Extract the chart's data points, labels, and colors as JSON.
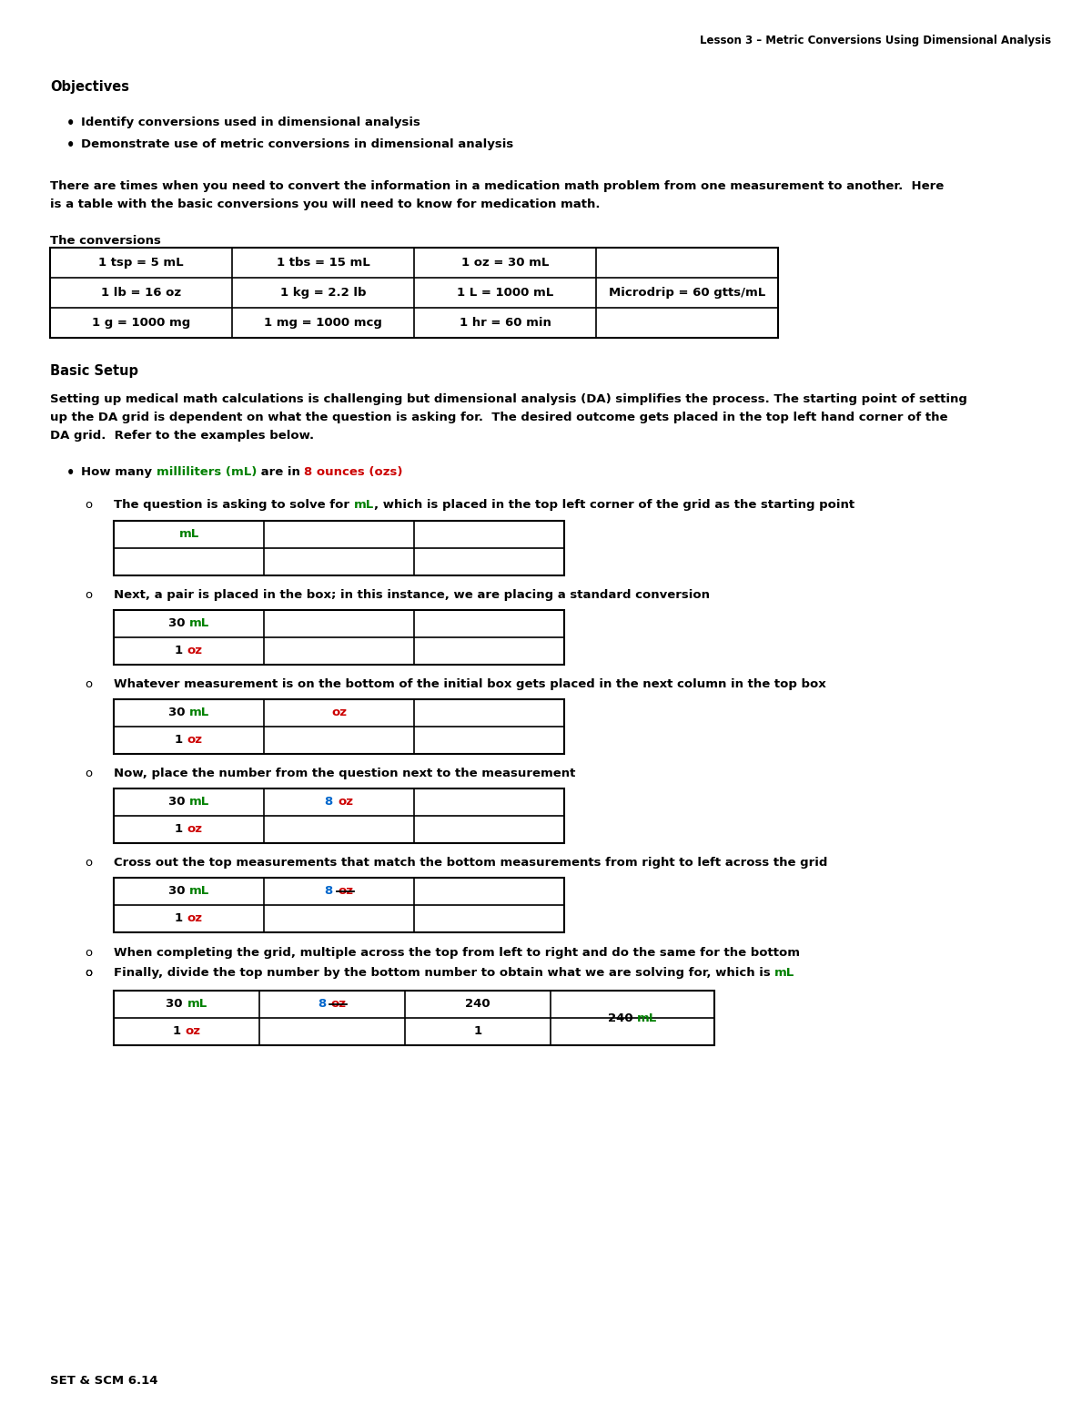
{
  "header_right": "Lesson 3 – Metric Conversions Using Dimensional Analysis",
  "section_objectives": "Objectives",
  "bullet1": "Identify conversions used in dimensional analysis",
  "bullet2": "Demonstrate use of metric conversions in dimensional analysis",
  "intro_text1": "There are times when you need to convert the information in a medication math problem from one measurement to another.  Here",
  "intro_text2": "is a table with the basic conversions you will need to know for medication math.",
  "conversions_label": "The conversions",
  "conv_table": [
    [
      "1 tsp = 5 mL",
      "1 tbs = 15 mL",
      "1 oz = 30 mL",
      ""
    ],
    [
      "1 lb = 16 oz",
      "1 kg = 2.2 lb",
      "1 L = 1000 mL",
      "Microdrip = 60 gtts/mL"
    ],
    [
      "1 g = 1000 mg",
      "1 mg = 1000 mcg",
      "1 hr = 60 min",
      ""
    ]
  ],
  "basic_setup_label": "Basic Setup",
  "basic_setup_text1": "Setting up medical math calculations is challenging but dimensional analysis (DA) simplifies the process. The starting point of setting",
  "basic_setup_text2": "up the DA grid is dependent on what the question is asking for.  The desired outcome gets placed in the top left hand corner of the",
  "basic_setup_text3": "DA grid.  Refer to the examples below.",
  "sub2_text": "Next, a pair is placed in the box; in this instance, we are placing a standard conversion",
  "sub3_text": "Whatever measurement is on the bottom of the initial box gets placed in the next column in the top box",
  "sub4_text": "Now, place the number from the question next to the measurement",
  "sub5_text": "Cross out the top measurements that match the bottom measurements from right to left across the grid",
  "sub6a_text": "When completing the grid, multiple across the top from left to right and do the same for the bottom",
  "sub6b_text1": "Finally, divide the top number by the bottom number to obtain what we are solving for, which is ",
  "sub6b_ml": "mL",
  "footer": "SET & SCM 6.14",
  "color_green": "#008000",
  "color_red": "#CC0000",
  "color_blue": "#0066CC",
  "color_black": "#000000",
  "color_bg": "#FFFFFF"
}
